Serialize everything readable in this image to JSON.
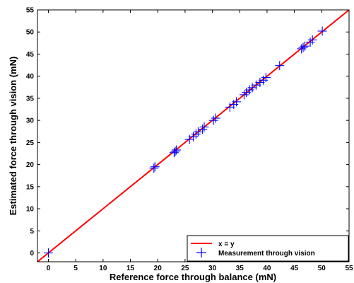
{
  "chart_data": {
    "type": "scatter",
    "xlabel": "Reference force through balance (mN)",
    "ylabel": "Estimated force through vision (mN)",
    "xlim": [
      -2,
      55
    ],
    "ylim": [
      -2,
      55
    ],
    "xticks": [
      0,
      5,
      10,
      15,
      20,
      25,
      30,
      35,
      40,
      45,
      50,
      55
    ],
    "yticks": [
      0,
      5,
      10,
      15,
      20,
      25,
      30,
      35,
      40,
      45,
      50,
      55
    ],
    "grid": false,
    "legend_position": "bottom-right",
    "series": [
      {
        "name": "x = y",
        "kind": "line",
        "color": "#ff0000",
        "x": [
          -2,
          55
        ],
        "y": [
          -2,
          55
        ]
      },
      {
        "name": "Measurement through vision",
        "kind": "scatter",
        "marker": "plus",
        "color": "#0000ff",
        "x": [
          0,
          19.3,
          19.5,
          23.0,
          23.2,
          23.4,
          25.8,
          26.5,
          27.0,
          27.4,
          28.2,
          28.5,
          30.2,
          30.6,
          33.2,
          33.9,
          34.4,
          35.8,
          36.2,
          36.8,
          37.3,
          38.0,
          38.7,
          39.3,
          39.8,
          42.3,
          46.3,
          46.6,
          46.9,
          47.9,
          48.3,
          50.1
        ],
        "y": [
          0,
          19.2,
          19.5,
          22.7,
          23.0,
          23.3,
          25.7,
          26.3,
          26.9,
          27.4,
          28.0,
          28.5,
          30.0,
          30.5,
          33.0,
          33.6,
          34.2,
          35.8,
          36.3,
          36.9,
          37.4,
          38.0,
          38.6,
          39.1,
          39.7,
          42.4,
          46.2,
          46.5,
          46.8,
          47.7,
          48.2,
          50.2
        ]
      }
    ]
  },
  "colors": {
    "axis": "#000000",
    "background": "#ffffff",
    "reference_line": "#ff0000",
    "measurement_marker": "#0000ff"
  }
}
